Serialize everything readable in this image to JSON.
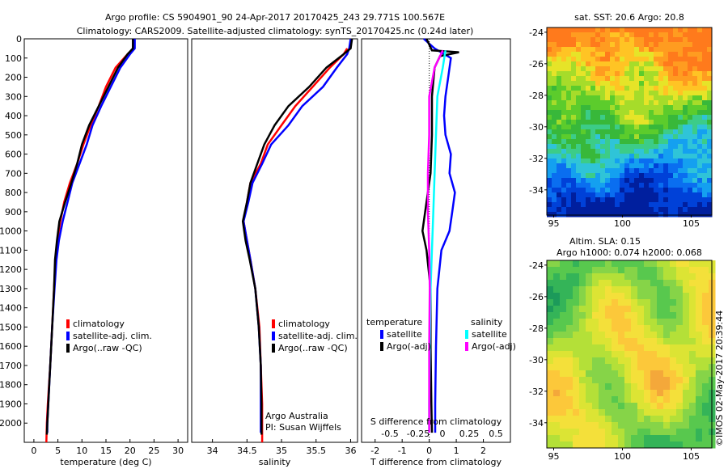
{
  "title_line1": "Argo profile: CS 5904901_90 24-Apr-2017 20170425_243 29.771S 100.567E",
  "title_line2": "Climatology: CARS2009. Satellite-adjusted climatology: synTS_20170425.nc (0.24d later)",
  "footer_vertical": "©IMOS 02-May-2017 20:39:44",
  "colors": {
    "climatology": "#ff0000",
    "satellite": "#0000ff",
    "argo": "#000000",
    "satellite_salinity": "#00ffff",
    "argo_salinity_adj": "#ff00ff"
  },
  "chart_data": [
    {
      "type": "line",
      "xlabel": "temperature (deg C)",
      "ylabel": "",
      "xlim": [
        -2,
        32
      ],
      "ylim": [
        0,
        2100
      ],
      "y_reversed": true,
      "xticks": [
        0,
        5,
        10,
        15,
        20,
        25,
        30
      ],
      "yticks": [
        0,
        100,
        200,
        300,
        400,
        500,
        600,
        700,
        800,
        900,
        1000,
        1100,
        1200,
        1300,
        1400,
        1500,
        1600,
        1700,
        1800,
        1900,
        2000
      ],
      "legend": [
        "climatology",
        "satellite-adj. clim.",
        "Argo(..raw -QC)"
      ],
      "series": [
        {
          "name": "climatology",
          "color": "#ff0000",
          "points": [
            [
              20.8,
              50
            ],
            [
              19.5,
              80
            ],
            [
              17,
              150
            ],
            [
              15,
              250
            ],
            [
              13.5,
              350
            ],
            [
              11.8,
              450
            ],
            [
              10.3,
              550
            ],
            [
              9,
              650
            ],
            [
              7.5,
              750
            ],
            [
              6.3,
              850
            ],
            [
              5.5,
              950
            ],
            [
              4.9,
              1050
            ],
            [
              4.5,
              1150
            ],
            [
              4.2,
              1300
            ],
            [
              3.8,
              1500
            ],
            [
              3.4,
              1700
            ],
            [
              2.9,
              1900
            ],
            [
              2.7,
              2000
            ],
            [
              2.6,
              2100
            ]
          ]
        },
        {
          "name": "satellite-adj. clim.",
          "color": "#0000ff",
          "points": [
            [
              21,
              0
            ],
            [
              21,
              50
            ],
            [
              20,
              80
            ],
            [
              18,
              150
            ],
            [
              16,
              250
            ],
            [
              14,
              350
            ],
            [
              12.2,
              450
            ],
            [
              11,
              550
            ],
            [
              9.5,
              650
            ],
            [
              8,
              750
            ],
            [
              7,
              850
            ],
            [
              6,
              950
            ],
            [
              5.2,
              1050
            ],
            [
              4.7,
              1150
            ],
            [
              4.3,
              1300
            ],
            [
              3.8,
              1500
            ],
            [
              3.4,
              1700
            ],
            [
              3,
              1900
            ],
            [
              2.8,
              2000
            ],
            [
              2.8,
              2050
            ]
          ]
        },
        {
          "name": "Argo(..raw -QC)",
          "color": "#000000",
          "points": [
            [
              20.6,
              0
            ],
            [
              20.6,
              50
            ],
            [
              19.5,
              80
            ],
            [
              17.5,
              150
            ],
            [
              15.5,
              250
            ],
            [
              13.5,
              350
            ],
            [
              11.5,
              450
            ],
            [
              10,
              550
            ],
            [
              9,
              650
            ],
            [
              7.8,
              750
            ],
            [
              6.5,
              850
            ],
            [
              5.3,
              950
            ],
            [
              4.8,
              1050
            ],
            [
              4.4,
              1150
            ],
            [
              4.2,
              1300
            ],
            [
              3.8,
              1500
            ],
            [
              3.4,
              1700
            ],
            [
              3,
              1900
            ],
            [
              2.8,
              2000
            ],
            [
              2.7,
              2060
            ]
          ]
        }
      ]
    },
    {
      "type": "line",
      "xlabel": "salinity",
      "xlim": [
        33.7,
        36.1
      ],
      "ylim": [
        0,
        2100
      ],
      "y_reversed": true,
      "xticks": [
        34,
        34.5,
        35,
        35.5,
        36
      ],
      "legend": [
        "climatology",
        "satellite-adj. clim.",
        "Argo(..raw -QC)"
      ],
      "annotation": [
        "Argo Australia",
        "PI: Susan Wijffels"
      ],
      "series": [
        {
          "name": "climatology",
          "color": "#ff0000",
          "points": [
            [
              35.95,
              50
            ],
            [
              35.9,
              80
            ],
            [
              35.7,
              150
            ],
            [
              35.45,
              250
            ],
            [
              35.2,
              350
            ],
            [
              35,
              450
            ],
            [
              34.8,
              550
            ],
            [
              34.7,
              650
            ],
            [
              34.55,
              750
            ],
            [
              34.5,
              850
            ],
            [
              34.45,
              950
            ],
            [
              34.5,
              1050
            ],
            [
              34.55,
              1150
            ],
            [
              34.62,
              1300
            ],
            [
              34.68,
              1500
            ],
            [
              34.7,
              1700
            ],
            [
              34.72,
              1900
            ],
            [
              34.72,
              2100
            ]
          ]
        },
        {
          "name": "satellite-adj. clim.",
          "color": "#0000ff",
          "points": [
            [
              36,
              0
            ],
            [
              35.98,
              50
            ],
            [
              35.95,
              80
            ],
            [
              35.8,
              150
            ],
            [
              35.6,
              250
            ],
            [
              35.3,
              350
            ],
            [
              35.1,
              450
            ],
            [
              34.85,
              550
            ],
            [
              34.72,
              650
            ],
            [
              34.58,
              750
            ],
            [
              34.52,
              850
            ],
            [
              34.45,
              950
            ],
            [
              34.5,
              1050
            ],
            [
              34.55,
              1150
            ],
            [
              34.62,
              1300
            ],
            [
              34.67,
              1500
            ],
            [
              34.7,
              1700
            ],
            [
              34.7,
              1900
            ],
            [
              34.7,
              2050
            ]
          ]
        },
        {
          "name": "Argo(..raw -QC)",
          "color": "#000000",
          "points": [
            [
              36.02,
              0
            ],
            [
              36,
              50
            ],
            [
              35.9,
              80
            ],
            [
              35.65,
              150
            ],
            [
              35.4,
              250
            ],
            [
              35.1,
              350
            ],
            [
              34.9,
              450
            ],
            [
              34.75,
              550
            ],
            [
              34.65,
              650
            ],
            [
              34.55,
              750
            ],
            [
              34.5,
              850
            ],
            [
              34.44,
              950
            ],
            [
              34.48,
              1050
            ],
            [
              34.54,
              1150
            ],
            [
              34.62,
              1300
            ],
            [
              34.67,
              1500
            ],
            [
              34.7,
              1700
            ],
            [
              34.71,
              1900
            ],
            [
              34.71,
              2060
            ]
          ]
        }
      ]
    },
    {
      "type": "line",
      "xlabel": "T difference from climatology",
      "x2label": "S difference from climatology",
      "xlim": [
        -2.5,
        3
      ],
      "ylim": [
        0,
        2100
      ],
      "y_reversed": true,
      "xticks": [
        -2,
        -1,
        0,
        1,
        2
      ],
      "x2ticks": [
        "-0.5",
        "-0.25",
        "0",
        "0.25",
        "0.5"
      ],
      "legend_left_title": "temperature",
      "legend_right_title": "salinity",
      "legend": [
        "satellite",
        "Argo(-adj)",
        "satellite",
        "Argo(-adj)"
      ],
      "series": [
        {
          "name": "satellite",
          "color": "#0000ff",
          "points": [
            [
              -0.2,
              0
            ],
            [
              0.2,
              50
            ],
            [
              0.8,
              100
            ],
            [
              0.7,
              200
            ],
            [
              0.6,
              300
            ],
            [
              0.55,
              400
            ],
            [
              0.6,
              500
            ],
            [
              0.8,
              600
            ],
            [
              0.75,
              700
            ],
            [
              0.95,
              800
            ],
            [
              0.85,
              900
            ],
            [
              0.75,
              1000
            ],
            [
              0.45,
              1100
            ],
            [
              0.3,
              1300
            ],
            [
              0.25,
              1600
            ],
            [
              0.22,
              1900
            ],
            [
              0.22,
              2050
            ]
          ]
        },
        {
          "name": "Argo(-adj)",
          "color": "#000000",
          "points": [
            [
              -0.1,
              0
            ],
            [
              0.1,
              60
            ],
            [
              1.1,
              70
            ],
            [
              0.4,
              90
            ],
            [
              0.2,
              150
            ],
            [
              0.1,
              300
            ],
            [
              0.1,
              500
            ],
            [
              0.05,
              700
            ],
            [
              -0.15,
              900
            ],
            [
              -0.25,
              1000
            ],
            [
              -0.1,
              1100
            ],
            [
              0.05,
              1300
            ],
            [
              0.05,
              1600
            ],
            [
              0.08,
              1900
            ],
            [
              0.1,
              2050
            ]
          ]
        },
        {
          "name": "satellite",
          "color": "#00ffff",
          "points": [
            [
              0.6,
              60
            ],
            [
              0.5,
              150
            ],
            [
              0.3,
              300
            ],
            [
              0.25,
              500
            ],
            [
              0.2,
              700
            ],
            [
              0.15,
              900
            ],
            [
              0.1,
              1100
            ],
            [
              0.05,
              1300
            ],
            [
              0.02,
              1600
            ],
            [
              0,
              1900
            ],
            [
              0,
              2050
            ]
          ]
        },
        {
          "name": "Argo(-adj)",
          "color": "#ff00ff",
          "points": [
            [
              0.5,
              60
            ],
            [
              0.2,
              150
            ],
            [
              0,
              300
            ],
            [
              0,
              500
            ],
            [
              -0.05,
              700
            ],
            [
              -0.05,
              900
            ],
            [
              0,
              1100
            ],
            [
              0.02,
              1300
            ],
            [
              0,
              1600
            ],
            [
              0,
              1900
            ],
            [
              0,
              2050
            ]
          ]
        }
      ]
    },
    {
      "type": "heatmap",
      "title": "sat. SST: 20.6  Argo: 20.8",
      "xlim": [
        94.5,
        106.5
      ],
      "ylim": [
        -35.6,
        -23.7
      ],
      "xticks": [
        95,
        100,
        105
      ],
      "yticks": [
        -24,
        -26,
        -28,
        -30,
        -32,
        -34
      ]
    },
    {
      "type": "heatmap",
      "title_line1": "Altim. SLA: 0.15",
      "title_line2": "Argo h1000: 0.074 h2000: 0.068",
      "xlim": [
        94.5,
        106.5
      ],
      "ylim": [
        -35.6,
        -23.7
      ],
      "xticks": [
        95,
        100,
        105
      ],
      "yticks": [
        -24,
        -26,
        -28,
        -30,
        -32,
        -34
      ]
    }
  ]
}
